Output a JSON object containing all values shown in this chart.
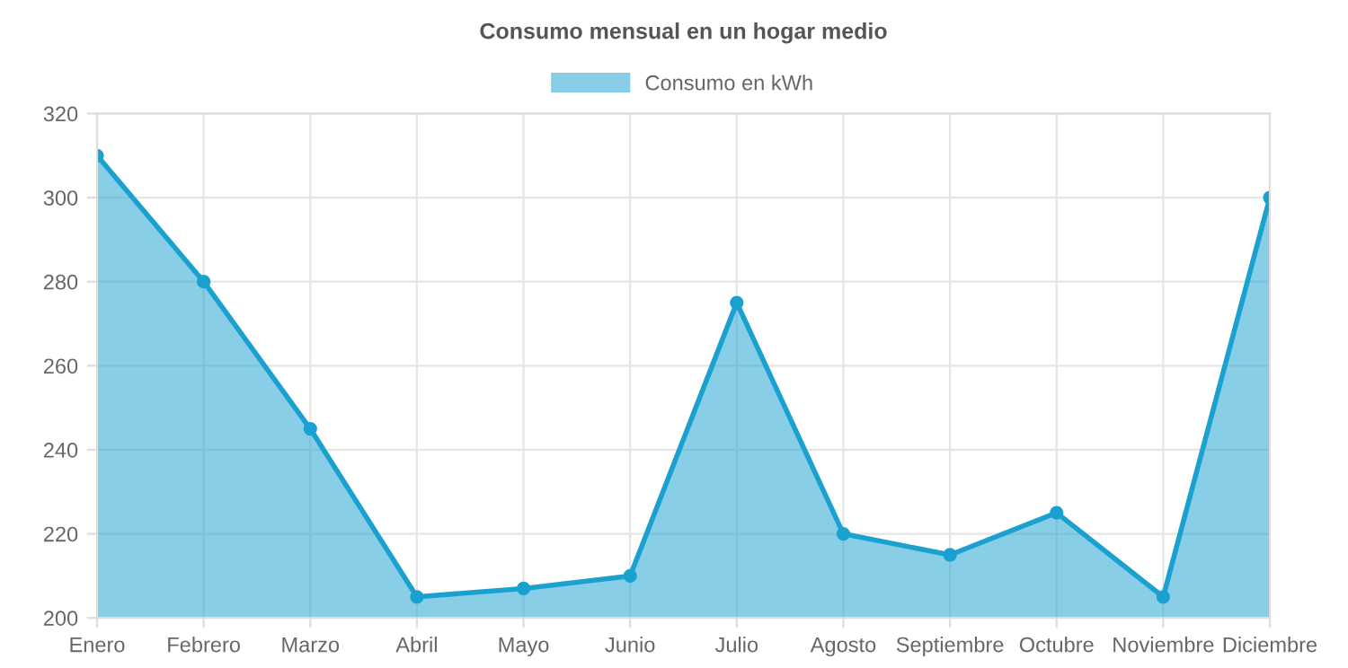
{
  "chart_data": {
    "type": "area",
    "title": "Consumo mensual en un hogar medio",
    "categories": [
      "Enero",
      "Febrero",
      "Marzo",
      "Abril",
      "Mayo",
      "Junio",
      "Julio",
      "Agosto",
      "Septiembre",
      "Octubre",
      "Noviembre",
      "Diciembre"
    ],
    "series": [
      {
        "name": "Consumo en kWh",
        "color": "#1ba1cf",
        "values": [
          310,
          280,
          245,
          205,
          207,
          210,
          275,
          220,
          215,
          225,
          205,
          300
        ]
      }
    ],
    "ylim": [
      200,
      320
    ],
    "yticks": [
      200,
      220,
      240,
      260,
      280,
      300,
      320
    ],
    "grid": true,
    "legend": "top",
    "marker": "circle",
    "line_style": "solid"
  }
}
